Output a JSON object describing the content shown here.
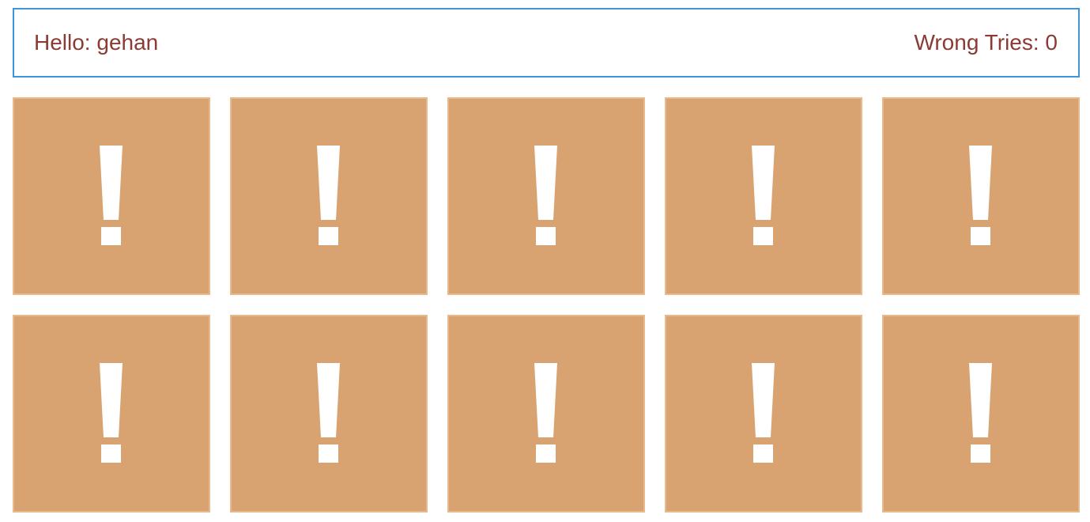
{
  "header": {
    "greeting": "Hello: gehan",
    "wrong_tries": "Wrong Tries: 0"
  },
  "board": {
    "rows": 2,
    "columns": 5,
    "cards": [
      {
        "icon": "exclamation-icon",
        "face": "hidden"
      },
      {
        "icon": "exclamation-icon",
        "face": "hidden"
      },
      {
        "icon": "exclamation-icon",
        "face": "hidden"
      },
      {
        "icon": "exclamation-icon",
        "face": "hidden"
      },
      {
        "icon": "exclamation-icon",
        "face": "hidden"
      },
      {
        "icon": "exclamation-icon",
        "face": "hidden"
      },
      {
        "icon": "exclamation-icon",
        "face": "hidden"
      },
      {
        "icon": "exclamation-icon",
        "face": "hidden"
      },
      {
        "icon": "exclamation-icon",
        "face": "hidden"
      },
      {
        "icon": "exclamation-icon",
        "face": "hidden"
      }
    ]
  },
  "colors": {
    "card_back": "#d8a271",
    "card_border": "#e7b98c",
    "text": "#8b3a34",
    "frame": "#3f95db",
    "icon": "#ffffff"
  }
}
